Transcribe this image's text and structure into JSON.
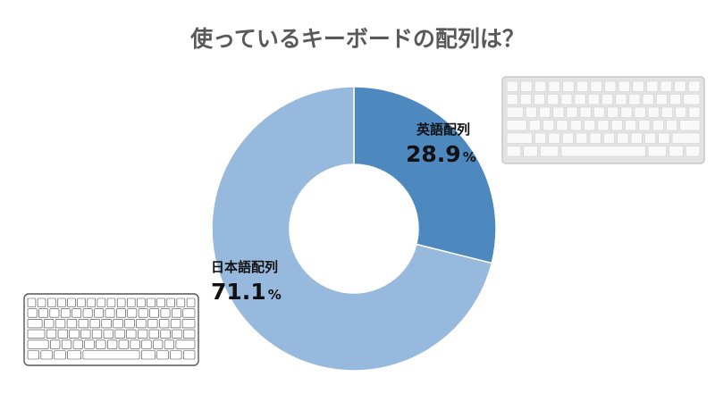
{
  "colors": {
    "en": "#4d88bf",
    "ja": "#98b9de",
    "title": "#595959",
    "label": "#111111"
  },
  "chart_data": {
    "type": "pie",
    "title": "使っているキーボードの配列は？",
    "donut": true,
    "categories": [
      "英語配列",
      "日本語配列"
    ],
    "values": [
      28.9,
      71.1
    ],
    "value_labels": [
      "28.9",
      "71.1"
    ],
    "unit": "%",
    "legend": "none",
    "icons": [
      "apple-keyboard-icon",
      "japanese-keyboard-icon"
    ]
  }
}
